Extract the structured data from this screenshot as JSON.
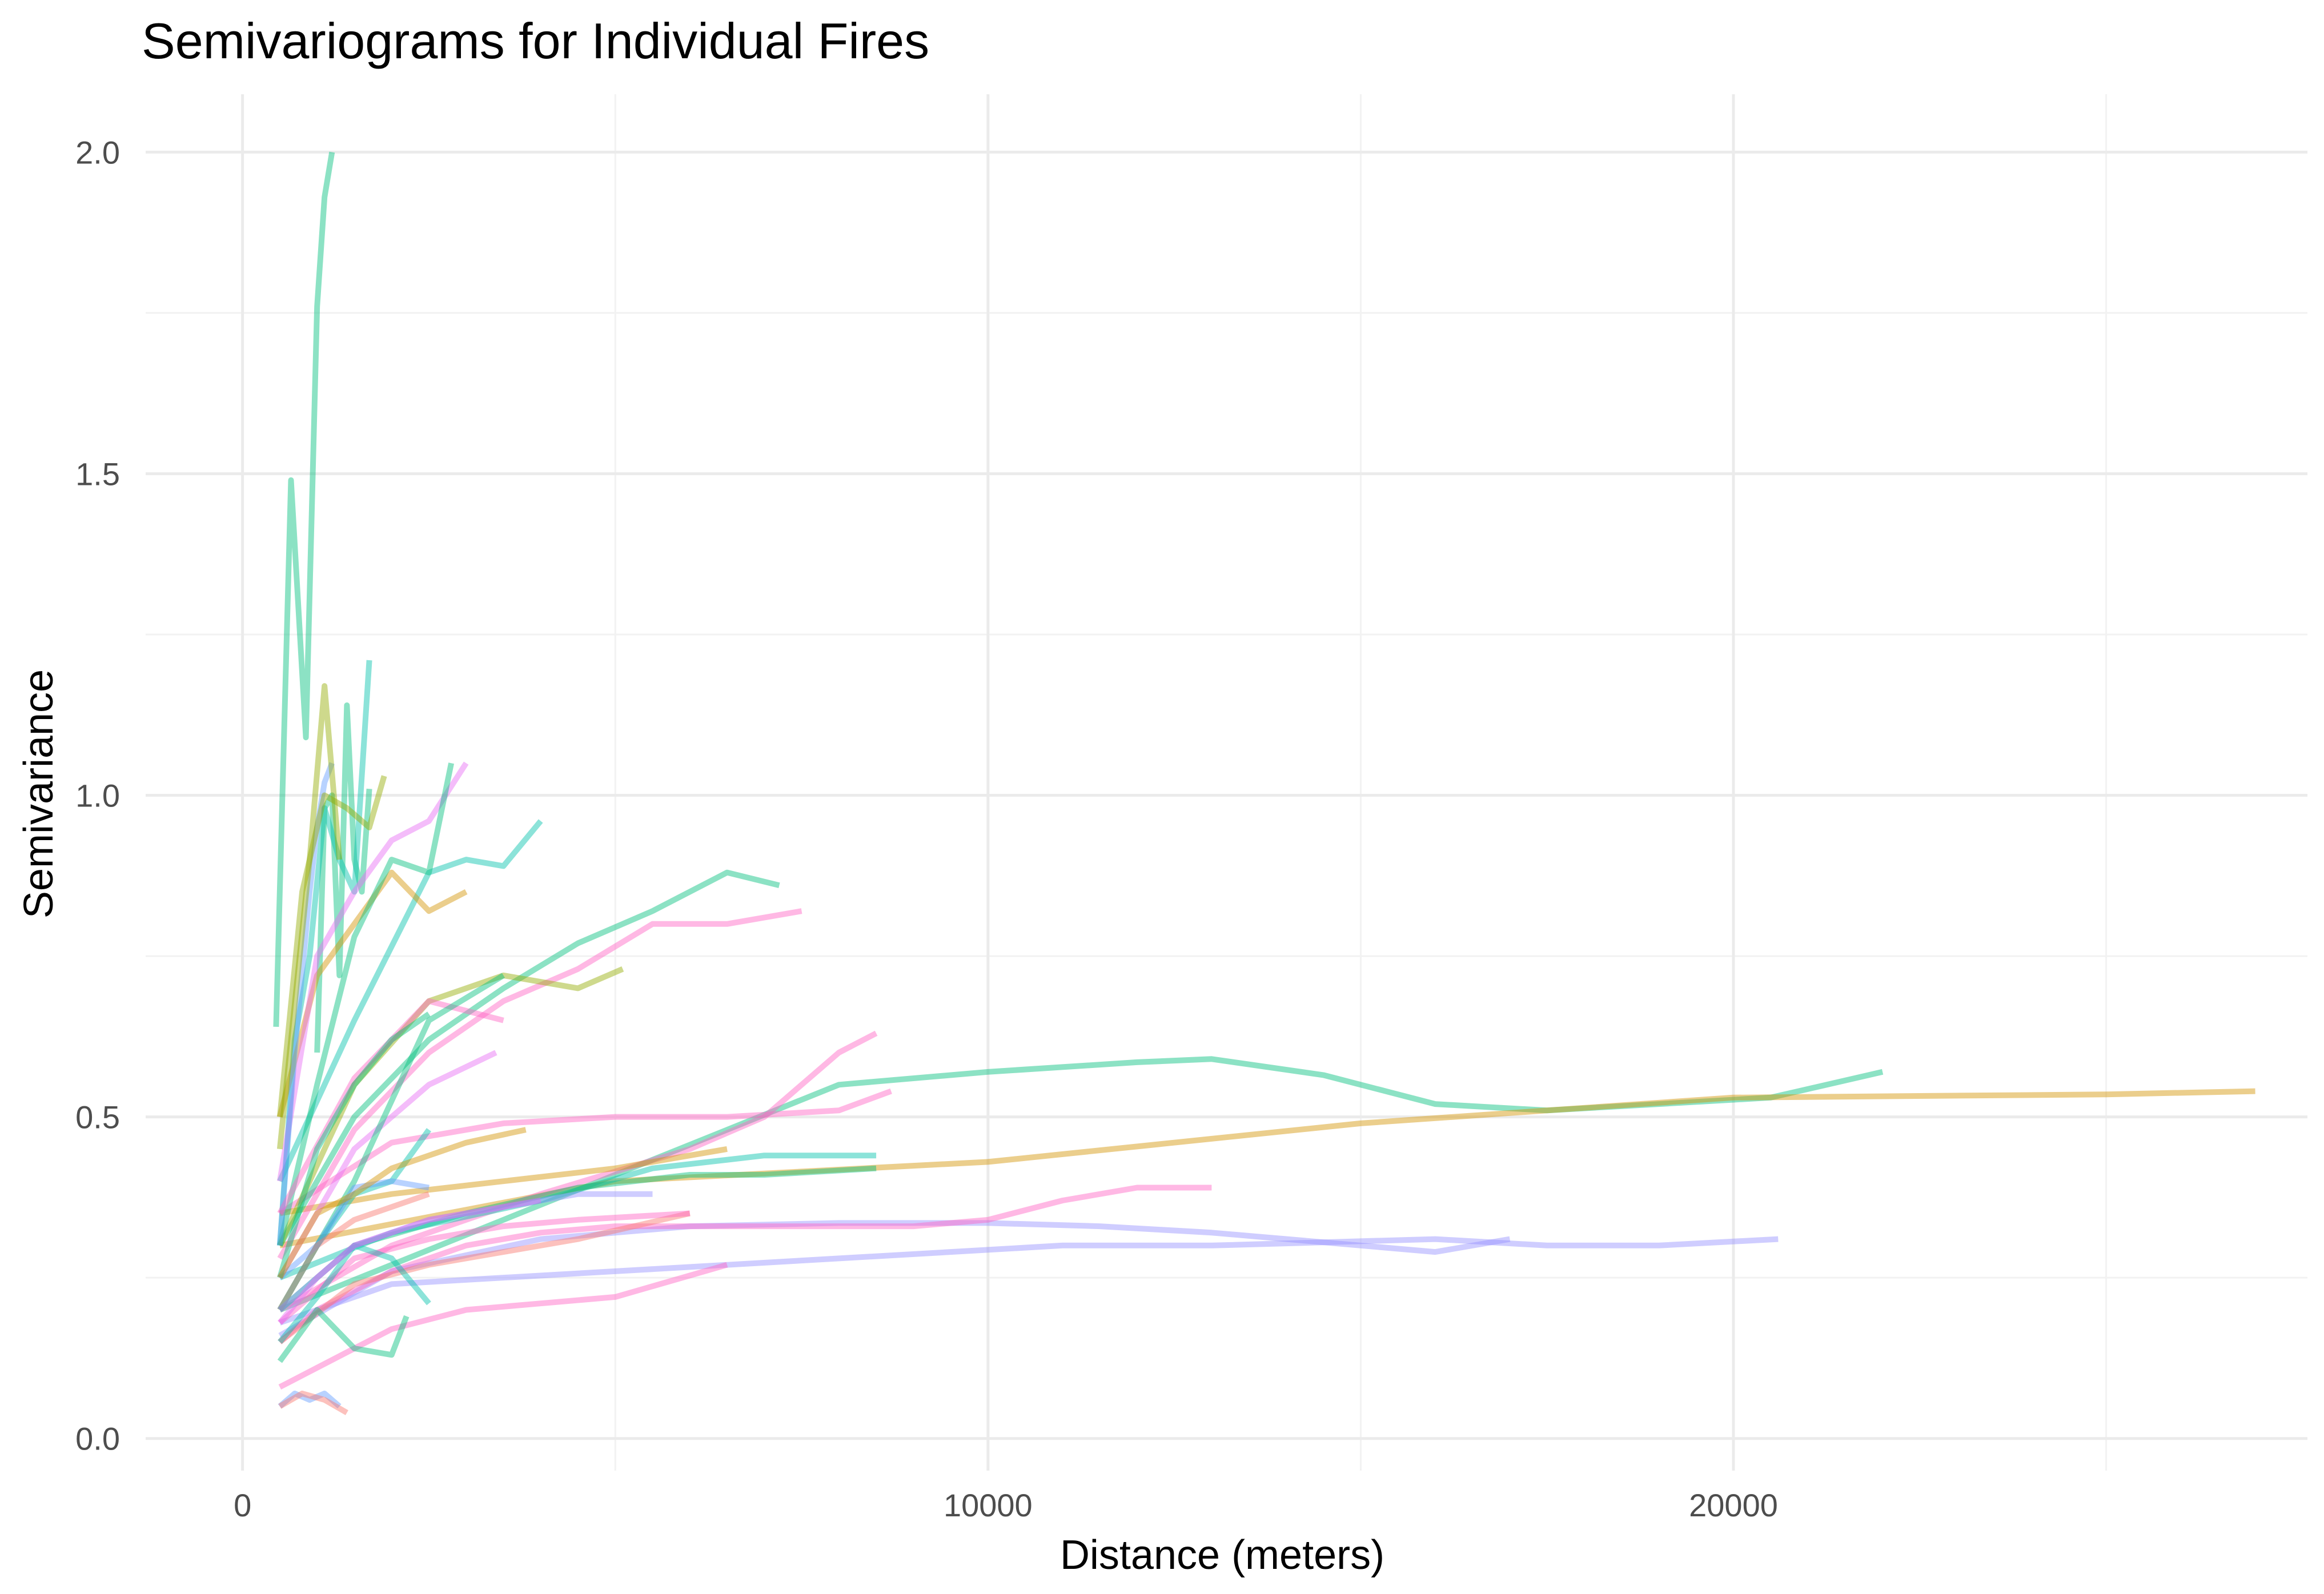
{
  "chart_data": {
    "type": "line",
    "title": "Semivariograms for Individual Fires",
    "xlabel": "Distance (meters)",
    "ylabel": "Semivariance",
    "xlim": [
      -1300,
      27700
    ],
    "ylim": [
      -0.05,
      2.09
    ],
    "x_ticks": [
      0,
      10000,
      20000
    ],
    "x_tick_labels": [
      "0",
      "10000",
      "20000"
    ],
    "x_minor_ticks": [
      5000,
      15000,
      25000
    ],
    "y_ticks": [
      0.0,
      0.5,
      1.0,
      1.5,
      2.0
    ],
    "y_tick_labels": [
      "0.0",
      "0.5",
      "1.0",
      "1.5",
      "2.0"
    ],
    "y_minor_ticks": [
      0.25,
      0.75,
      1.25,
      1.75
    ],
    "grid": true,
    "legend": "none",
    "series": [
      {
        "color": "#00BF7D",
        "x": [
          450,
          650,
          850,
          1000,
          1100,
          1200
        ],
        "y": [
          0.64,
          1.49,
          1.09,
          1.76,
          1.93,
          2.0
        ]
      },
      {
        "color": "#00BF7D",
        "x": [
          1000,
          1100,
          1200,
          1300,
          1400,
          1500,
          1600,
          1700
        ],
        "y": [
          0.6,
          0.98,
          1.0,
          0.72,
          1.14,
          0.9,
          0.85,
          1.01
        ]
      },
      {
        "color": "#00C1AA",
        "x": [
          500,
          700,
          900,
          1100,
          1300,
          1500,
          1700
        ],
        "y": [
          0.3,
          0.62,
          0.75,
          0.98,
          0.9,
          0.85,
          1.21
        ]
      },
      {
        "color": "#00BF7D",
        "x": [
          500,
          8000,
          10000,
          12000,
          13000,
          14500,
          16000,
          17500,
          19000,
          20500,
          22000
        ],
        "y": [
          0.2,
          0.55,
          0.57,
          0.585,
          0.59,
          0.565,
          0.52,
          0.51,
          0.52,
          0.53,
          0.57
        ]
      },
      {
        "color": "#D39200",
        "x": [
          500,
          5000,
          10000,
          15000,
          17500,
          20000,
          25000,
          27000
        ],
        "y": [
          0.3,
          0.4,
          0.43,
          0.49,
          0.51,
          0.53,
          0.535,
          0.54
        ]
      },
      {
        "color": "#9590FF",
        "x": [
          500,
          2000,
          4000,
          6000,
          8000,
          10000,
          11500,
          13000,
          15000,
          16000,
          17000
        ],
        "y": [
          0.16,
          0.26,
          0.31,
          0.33,
          0.335,
          0.335,
          0.33,
          0.32,
          0.3,
          0.29,
          0.31
        ]
      },
      {
        "color": "#9590FF",
        "x": [
          500,
          2000,
          5000,
          8000,
          11000,
          13000,
          16000,
          17500,
          19000,
          20600
        ],
        "y": [
          0.18,
          0.24,
          0.26,
          0.28,
          0.3,
          0.3,
          0.31,
          0.3,
          0.3,
          0.31
        ]
      },
      {
        "color": "#FF61C3",
        "x": [
          500,
          1000,
          2000,
          3000,
          4000,
          5000,
          6000,
          7000,
          8000,
          9000,
          10000,
          11000,
          12000,
          13000
        ],
        "y": [
          0.15,
          0.2,
          0.26,
          0.3,
          0.32,
          0.33,
          0.33,
          0.33,
          0.33,
          0.33,
          0.34,
          0.37,
          0.39,
          0.39
        ]
      },
      {
        "color": "#FF61C3",
        "x": [
          500,
          2000,
          3500,
          5000,
          6500,
          8000,
          8700
        ],
        "y": [
          0.35,
          0.46,
          0.49,
          0.5,
          0.5,
          0.51,
          0.54
        ]
      },
      {
        "color": "#FF61C3",
        "x": [
          500,
          2000,
          4000,
          6000,
          7000,
          8000,
          8500
        ],
        "y": [
          0.2,
          0.3,
          0.38,
          0.45,
          0.5,
          0.6,
          0.63
        ]
      },
      {
        "color": "#00BF7D",
        "x": [
          500,
          1500,
          3000,
          4500,
          6000,
          7000,
          8500
        ],
        "y": [
          0.2,
          0.3,
          0.35,
          0.39,
          0.41,
          0.41,
          0.42
        ]
      },
      {
        "color": "#00C1AA",
        "x": [
          500,
          2000,
          4000,
          5500,
          7000,
          8500
        ],
        "y": [
          0.25,
          0.32,
          0.37,
          0.42,
          0.44,
          0.44
        ]
      },
      {
        "color": "#D39200",
        "x": [
          500,
          2000,
          3500,
          5000,
          6500
        ],
        "y": [
          0.35,
          0.38,
          0.4,
          0.42,
          0.45
        ]
      },
      {
        "color": "#FF61C3",
        "x": [
          500,
          2000,
          3000,
          4000,
          5000,
          6500
        ],
        "y": [
          0.08,
          0.17,
          0.2,
          0.21,
          0.22,
          0.27
        ]
      },
      {
        "color": "#00BF7D",
        "x": [
          500,
          1500,
          2500,
          3500,
          4500,
          5500,
          6500,
          7200
        ],
        "y": [
          0.3,
          0.5,
          0.62,
          0.7,
          0.77,
          0.82,
          0.88,
          0.86
        ]
      },
      {
        "color": "#FF61C3",
        "x": [
          500,
          1500,
          2500,
          3500,
          4500,
          5500,
          6500,
          7500
        ],
        "y": [
          0.28,
          0.48,
          0.6,
          0.68,
          0.73,
          0.8,
          0.8,
          0.82
        ]
      },
      {
        "color": "#93AA00",
        "x": [
          500,
          1500,
          2500,
          3500,
          4500,
          5100
        ],
        "y": [
          0.3,
          0.55,
          0.68,
          0.72,
          0.7,
          0.73
        ]
      },
      {
        "color": "#00C1AA",
        "x": [
          500,
          1500,
          2500,
          3000,
          3500,
          4000
        ],
        "y": [
          0.4,
          0.65,
          0.88,
          0.9,
          0.89,
          0.96
        ]
      },
      {
        "color": "#D39200",
        "x": [
          500,
          1000,
          1500,
          2000,
          2500,
          3000
        ],
        "y": [
          0.5,
          0.72,
          0.8,
          0.88,
          0.82,
          0.85
        ]
      },
      {
        "color": "#E76BF3",
        "x": [
          500,
          1000,
          1500,
          2000,
          2500,
          3000
        ],
        "y": [
          0.4,
          0.75,
          0.85,
          0.93,
          0.96,
          1.05
        ]
      },
      {
        "color": "#00BF7D",
        "x": [
          500,
          1000,
          1500,
          2000,
          2500,
          2800
        ],
        "y": [
          0.3,
          0.55,
          0.78,
          0.9,
          0.88,
          1.05
        ]
      },
      {
        "color": "#619CFF",
        "x": [
          500,
          700,
          900,
          1000,
          1100,
          1200
        ],
        "y": [
          0.3,
          0.6,
          0.85,
          0.95,
          1.02,
          1.05
        ]
      },
      {
        "color": "#93AA00",
        "x": [
          500,
          800,
          1100,
          1400,
          1700,
          1900
        ],
        "y": [
          0.5,
          0.85,
          1.0,
          0.98,
          0.95,
          1.03
        ]
      },
      {
        "color": "#93AA00",
        "x": [
          500,
          900,
          1100,
          1300
        ],
        "y": [
          0.45,
          0.9,
          1.17,
          0.9
        ]
      },
      {
        "color": "#FF61C3",
        "x": [
          500,
          1500,
          2500,
          3500
        ],
        "y": [
          0.35,
          0.56,
          0.68,
          0.65
        ]
      },
      {
        "color": "#E76BF3",
        "x": [
          500,
          1500,
          2500,
          3400
        ],
        "y": [
          0.25,
          0.45,
          0.55,
          0.6
        ]
      },
      {
        "color": "#00BF7D",
        "x": [
          500,
          1500,
          2500,
          3500
        ],
        "y": [
          0.2,
          0.4,
          0.65,
          0.72
        ]
      },
      {
        "color": "#00C1AA",
        "x": [
          500,
          1000,
          1500,
          2000,
          2500
        ],
        "y": [
          0.2,
          0.3,
          0.38,
          0.4,
          0.48
        ]
      },
      {
        "color": "#619CFF",
        "x": [
          500,
          1000,
          1500,
          2000,
          2500
        ],
        "y": [
          0.25,
          0.3,
          0.39,
          0.4,
          0.39
        ]
      },
      {
        "color": "#00BF7D",
        "x": [
          500,
          1000,
          1500,
          2000,
          2500
        ],
        "y": [
          0.25,
          0.45,
          0.55,
          0.62,
          0.66
        ]
      },
      {
        "color": "#F8766D",
        "x": [
          500,
          1000,
          1500,
          2000,
          2500
        ],
        "y": [
          0.2,
          0.3,
          0.34,
          0.36,
          0.38
        ]
      },
      {
        "color": "#F8766D",
        "x": [
          500,
          1500,
          2500,
          3500,
          4500,
          6000
        ],
        "y": [
          0.15,
          0.24,
          0.27,
          0.29,
          0.31,
          0.35
        ]
      },
      {
        "color": "#FF61C3",
        "x": [
          500,
          1500,
          2500,
          3500,
          4500,
          6000
        ],
        "y": [
          0.18,
          0.28,
          0.31,
          0.33,
          0.34,
          0.35
        ]
      },
      {
        "color": "#00BF7D",
        "x": [
          500,
          1000,
          1500,
          2000,
          2200
        ],
        "y": [
          0.12,
          0.2,
          0.14,
          0.13,
          0.19
        ]
      },
      {
        "color": "#00C1AA",
        "x": [
          500,
          1000,
          1500,
          2000,
          2500
        ],
        "y": [
          0.15,
          0.22,
          0.3,
          0.28,
          0.21
        ]
      },
      {
        "color": "#619CFF",
        "x": [
          500,
          700,
          900,
          1100,
          1300
        ],
        "y": [
          0.05,
          0.07,
          0.06,
          0.07,
          0.05
        ]
      },
      {
        "color": "#F8766D",
        "x": [
          500,
          800,
          1100,
          1400
        ],
        "y": [
          0.05,
          0.07,
          0.06,
          0.04
        ]
      },
      {
        "color": "#D39200",
        "x": [
          500,
          1000,
          1500,
          2000,
          2500,
          3000,
          3800
        ],
        "y": [
          0.25,
          0.35,
          0.38,
          0.42,
          0.44,
          0.46,
          0.48
        ]
      },
      {
        "color": "#9590FF",
        "x": [
          500,
          1500,
          2500,
          3500,
          4500,
          5500
        ],
        "y": [
          0.2,
          0.3,
          0.34,
          0.36,
          0.38,
          0.38
        ]
      },
      {
        "color": "#E76BF3",
        "x": [
          500,
          1000,
          1500,
          2000,
          2500,
          3000,
          4000
        ],
        "y": [
          0.18,
          0.25,
          0.3,
          0.32,
          0.34,
          0.35,
          0.37
        ]
      }
    ]
  }
}
